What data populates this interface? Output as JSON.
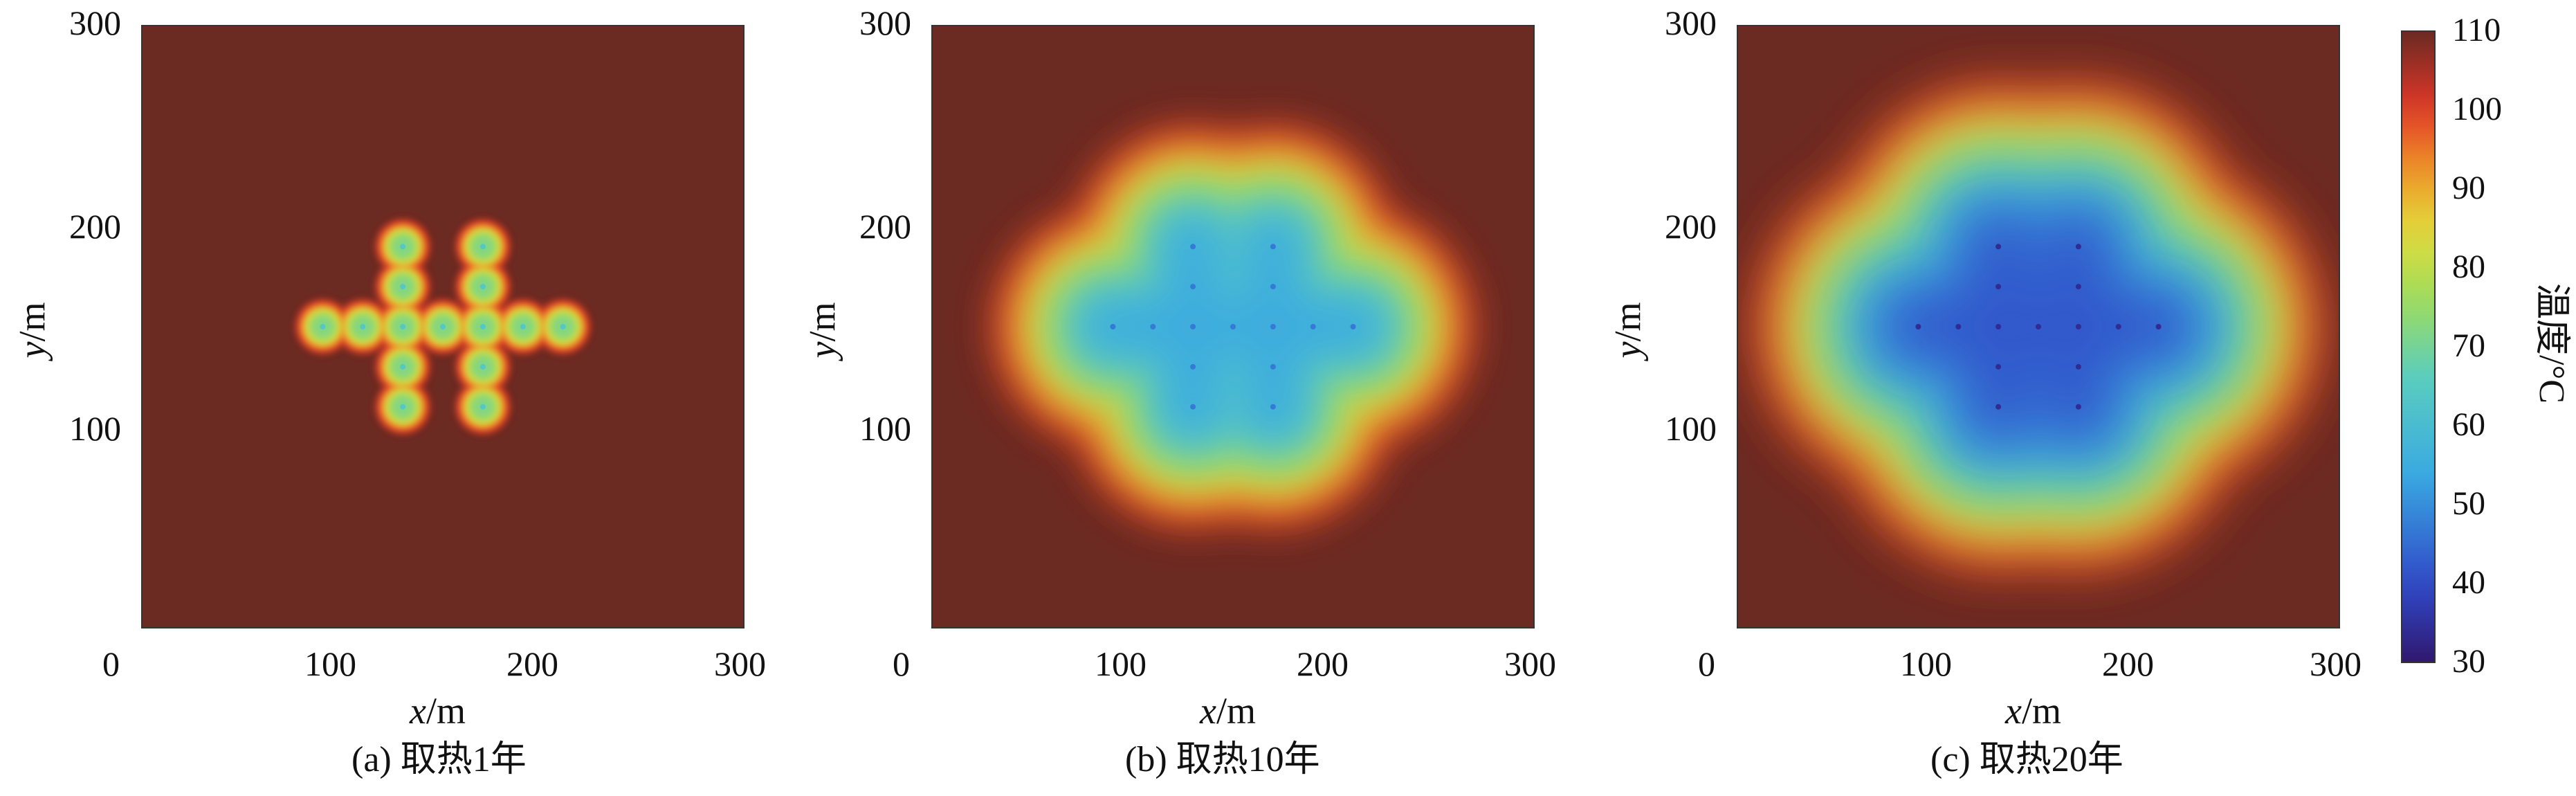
{
  "chart_data": [
    {
      "type": "heatmap",
      "caption": "(a) 取热1年",
      "xlabel_var": "x",
      "xlabel_unit": "/m",
      "ylabel_var": "y",
      "ylabel_unit": "/m",
      "xlim": [
        0,
        300
      ],
      "ylim": [
        0,
        300
      ],
      "x_ticks": [
        "0",
        "100",
        "200",
        "300"
      ],
      "y_ticks": [
        "100",
        "200",
        "300"
      ],
      "wells": [
        [
          90,
          150
        ],
        [
          110,
          150
        ],
        [
          130,
          150
        ],
        [
          150,
          150
        ],
        [
          170,
          150
        ],
        [
          190,
          150
        ],
        [
          210,
          150
        ],
        [
          130,
          110
        ],
        [
          130,
          130
        ],
        [
          130,
          170
        ],
        [
          130,
          190
        ],
        [
          170,
          110
        ],
        [
          170,
          130
        ],
        [
          170,
          170
        ],
        [
          170,
          190
        ]
      ],
      "background_temperature": 110,
      "min_temperature_approx": 72,
      "influence_radius_m": 4
    },
    {
      "type": "heatmap",
      "caption": "(b) 取热10年",
      "xlabel_var": "x",
      "xlabel_unit": "/m",
      "ylabel_var": "y",
      "ylabel_unit": "/m",
      "xlim": [
        0,
        300
      ],
      "ylim": [
        0,
        300
      ],
      "x_ticks": [
        "0",
        "100",
        "200",
        "300"
      ],
      "y_ticks": [
        "100",
        "200",
        "300"
      ],
      "wells": [
        [
          90,
          150
        ],
        [
          110,
          150
        ],
        [
          130,
          150
        ],
        [
          150,
          150
        ],
        [
          170,
          150
        ],
        [
          190,
          150
        ],
        [
          210,
          150
        ],
        [
          130,
          110
        ],
        [
          130,
          130
        ],
        [
          130,
          170
        ],
        [
          130,
          190
        ],
        [
          170,
          110
        ],
        [
          170,
          130
        ],
        [
          170,
          170
        ],
        [
          170,
          190
        ]
      ],
      "background_temperature": 110,
      "min_temperature_approx": 55,
      "influence_radius_m": 22
    },
    {
      "type": "heatmap",
      "caption": "(c) 取热20年",
      "xlabel_var": "x",
      "xlabel_unit": "/m",
      "ylabel_var": "y",
      "ylabel_unit": "/m",
      "xlim": [
        0,
        300
      ],
      "ylim": [
        0,
        300
      ],
      "x_ticks": [
        "0",
        "100",
        "200",
        "300"
      ],
      "y_ticks": [
        "100",
        "200",
        "300"
      ],
      "wells": [
        [
          90,
          150
        ],
        [
          110,
          150
        ],
        [
          130,
          150
        ],
        [
          150,
          150
        ],
        [
          170,
          150
        ],
        [
          190,
          150
        ],
        [
          210,
          150
        ],
        [
          130,
          110
        ],
        [
          130,
          130
        ],
        [
          130,
          170
        ],
        [
          130,
          190
        ],
        [
          170,
          110
        ],
        [
          170,
          130
        ],
        [
          170,
          170
        ],
        [
          170,
          190
        ]
      ],
      "background_temperature": 110,
      "min_temperature_approx": 42,
      "influence_radius_m": 30
    }
  ],
  "colorbar": {
    "title": "温度/°C",
    "range": [
      30,
      110
    ],
    "ticks": [
      "110",
      "100",
      "90",
      "80",
      "70",
      "60",
      "50",
      "40",
      "30"
    ],
    "colormap": "jet",
    "max_color": "#6b2a22"
  }
}
